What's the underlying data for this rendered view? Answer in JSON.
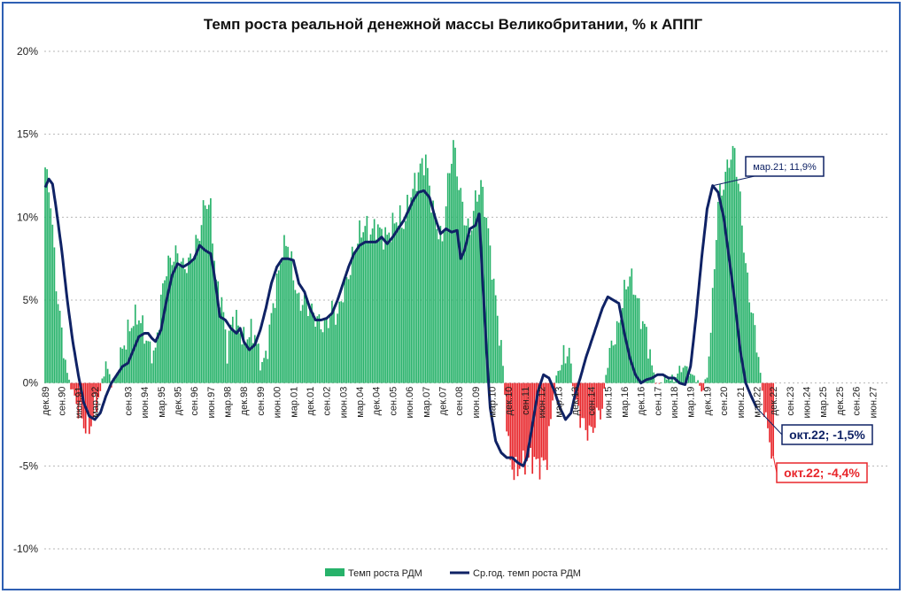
{
  "chart_data": {
    "type": "bar+line",
    "title": "Темп роста реальной денежной массы Великобритании, % к АППГ",
    "ylim": [
      -10,
      20
    ],
    "yticks": [
      {
        "value": 20,
        "label": "20%"
      },
      {
        "value": 15,
        "label": "15%"
      },
      {
        "value": 10,
        "label": "10%"
      },
      {
        "value": 5,
        "label": "5%"
      },
      {
        "value": 0,
        "label": "0%"
      },
      {
        "value": -5,
        "label": "-5%"
      },
      {
        "value": -10,
        "label": "-10%"
      }
    ],
    "x_start_month_index": 0,
    "x_total_months": 460,
    "xticks": [
      {
        "m": 0,
        "label": "дек.89"
      },
      {
        "m": 9,
        "label": "сен.90"
      },
      {
        "m": 18,
        "label": "июн.91"
      },
      {
        "m": 27,
        "label": "мар.92"
      },
      {
        "m": 45,
        "label": "сен.93"
      },
      {
        "m": 54,
        "label": "июн.94"
      },
      {
        "m": 63,
        "label": "мар.95"
      },
      {
        "m": 72,
        "label": "дек.95"
      },
      {
        "m": 81,
        "label": "сен.96"
      },
      {
        "m": 90,
        "label": "июн.97"
      },
      {
        "m": 99,
        "label": "мар.98"
      },
      {
        "m": 108,
        "label": "дек.98"
      },
      {
        "m": 117,
        "label": "сен.99"
      },
      {
        "m": 126,
        "label": "июн.00"
      },
      {
        "m": 135,
        "label": "мар.01"
      },
      {
        "m": 144,
        "label": "дек.01"
      },
      {
        "m": 153,
        "label": "сен.02"
      },
      {
        "m": 162,
        "label": "июн.03"
      },
      {
        "m": 171,
        "label": "мар.04"
      },
      {
        "m": 180,
        "label": "дек.04"
      },
      {
        "m": 189,
        "label": "сен.05"
      },
      {
        "m": 198,
        "label": "июн.06"
      },
      {
        "m": 207,
        "label": "мар.07"
      },
      {
        "m": 216,
        "label": "дек.07"
      },
      {
        "m": 225,
        "label": "сен.08"
      },
      {
        "m": 234,
        "label": "июн.09"
      },
      {
        "m": 243,
        "label": "мар.10"
      },
      {
        "m": 252,
        "label": "дек.10"
      },
      {
        "m": 261,
        "label": "сен.11"
      },
      {
        "m": 270,
        "label": "июн.12"
      },
      {
        "m": 279,
        "label": "мар.13"
      },
      {
        "m": 288,
        "label": "дек.13"
      },
      {
        "m": 297,
        "label": "сен.14"
      },
      {
        "m": 306,
        "label": "июн.15"
      },
      {
        "m": 315,
        "label": "мар.16"
      },
      {
        "m": 324,
        "label": "дек.16"
      },
      {
        "m": 333,
        "label": "сен.17"
      },
      {
        "m": 342,
        "label": "июн.18"
      },
      {
        "m": 351,
        "label": "мар.19"
      },
      {
        "m": 360,
        "label": "дек.19"
      },
      {
        "m": 369,
        "label": "сен.20"
      },
      {
        "m": 378,
        "label": "июн.21"
      },
      {
        "m": 387,
        "label": "мар.22"
      },
      {
        "m": 396,
        "label": "дек.22"
      },
      {
        "m": 405,
        "label": "сен.23"
      },
      {
        "m": 414,
        "label": "июн.24"
      },
      {
        "m": 423,
        "label": "мар.25"
      },
      {
        "m": 432,
        "label": "дек.25"
      },
      {
        "m": 441,
        "label": "сен.26"
      },
      {
        "m": 450,
        "label": "июн.27"
      }
    ],
    "bar_keypoints": [
      [
        0,
        13
      ],
      [
        3,
        11
      ],
      [
        6,
        6
      ],
      [
        9,
        3
      ],
      [
        12,
        0.5
      ],
      [
        15,
        -0.5
      ],
      [
        18,
        -1.5
      ],
      [
        21,
        -2.5
      ],
      [
        24,
        -2.8
      ],
      [
        27,
        -1.5
      ],
      [
        30,
        -0.5
      ],
      [
        33,
        1.2
      ],
      [
        36,
        0
      ],
      [
        39,
        0.5
      ],
      [
        42,
        2
      ],
      [
        45,
        3
      ],
      [
        48,
        3.8
      ],
      [
        51,
        4
      ],
      [
        54,
        3
      ],
      [
        57,
        2
      ],
      [
        60,
        1.8
      ],
      [
        63,
        5
      ],
      [
        66,
        7
      ],
      [
        69,
        7.5
      ],
      [
        72,
        7.8
      ],
      [
        75,
        7
      ],
      [
        78,
        7.2
      ],
      [
        81,
        8
      ],
      [
        84,
        9
      ],
      [
        87,
        11
      ],
      [
        90,
        10.5
      ],
      [
        93,
        6
      ],
      [
        96,
        5
      ],
      [
        99,
        2
      ],
      [
        102,
        4
      ],
      [
        105,
        3.5
      ],
      [
        108,
        2.5
      ],
      [
        111,
        3
      ],
      [
        114,
        3
      ],
      [
        117,
        1
      ],
      [
        120,
        1.5
      ],
      [
        123,
        4
      ],
      [
        126,
        6
      ],
      [
        129,
        8
      ],
      [
        132,
        8.5
      ],
      [
        135,
        6.5
      ],
      [
        138,
        4.8
      ],
      [
        141,
        5
      ],
      [
        144,
        4.5
      ],
      [
        147,
        4
      ],
      [
        150,
        3.5
      ],
      [
        153,
        3.5
      ],
      [
        156,
        4.5
      ],
      [
        159,
        4
      ],
      [
        162,
        5.5
      ],
      [
        165,
        6.5
      ],
      [
        168,
        8
      ],
      [
        171,
        9
      ],
      [
        174,
        9.5
      ],
      [
        177,
        9
      ],
      [
        180,
        9.5
      ],
      [
        183,
        9
      ],
      [
        186,
        8.8
      ],
      [
        189,
        9.5
      ],
      [
        192,
        10
      ],
      [
        195,
        9.5
      ],
      [
        198,
        11
      ],
      [
        201,
        12
      ],
      [
        204,
        13
      ],
      [
        207,
        13.5
      ],
      [
        210,
        11
      ],
      [
        213,
        9.5
      ],
      [
        216,
        8.5
      ],
      [
        219,
        12
      ],
      [
        222,
        14.5
      ],
      [
        225,
        12
      ],
      [
        228,
        10
      ],
      [
        231,
        9
      ],
      [
        234,
        11
      ],
      [
        237,
        12
      ],
      [
        240,
        10
      ],
      [
        243,
        7
      ],
      [
        246,
        4
      ],
      [
        249,
        1
      ],
      [
        252,
        -4
      ],
      [
        255,
        -5.5
      ],
      [
        258,
        -5
      ],
      [
        261,
        -4.8
      ],
      [
        264,
        -4.5
      ],
      [
        267,
        -4.8
      ],
      [
        270,
        -5
      ],
      [
        273,
        -4.5
      ],
      [
        276,
        -1
      ],
      [
        279,
        0.8
      ],
      [
        282,
        1.5
      ],
      [
        285,
        2
      ],
      [
        288,
        -1
      ],
      [
        291,
        -2
      ],
      [
        294,
        -2.8
      ],
      [
        297,
        -3
      ],
      [
        300,
        -2
      ],
      [
        303,
        -1.5
      ],
      [
        306,
        1.5
      ],
      [
        309,
        2.5
      ],
      [
        312,
        3.5
      ],
      [
        315,
        5.5
      ],
      [
        318,
        6.5
      ],
      [
        321,
        5.5
      ],
      [
        324,
        4
      ],
      [
        327,
        3
      ],
      [
        330,
        1
      ],
      [
        333,
        -0.2
      ],
      [
        336,
        0.2
      ],
      [
        339,
        0.3
      ],
      [
        342,
        0.2
      ],
      [
        345,
        0.8
      ],
      [
        348,
        1
      ],
      [
        351,
        0.5
      ],
      [
        354,
        0.3
      ],
      [
        357,
        -0.5
      ],
      [
        360,
        0.3
      ],
      [
        363,
        5
      ],
      [
        366,
        11
      ],
      [
        369,
        12
      ],
      [
        372,
        13.5
      ],
      [
        375,
        14
      ],
      [
        378,
        11
      ],
      [
        381,
        7
      ],
      [
        384,
        4.5
      ],
      [
        387,
        2.5
      ],
      [
        390,
        -0.5
      ],
      [
        393,
        -3
      ],
      [
        396,
        -4.4
      ]
    ],
    "line_keypoints": [
      [
        0,
        11.8
      ],
      [
        2,
        12.3
      ],
      [
        4,
        12
      ],
      [
        6,
        10.5
      ],
      [
        9,
        8
      ],
      [
        12,
        5
      ],
      [
        15,
        2.5
      ],
      [
        18,
        0.5
      ],
      [
        21,
        -1.2
      ],
      [
        24,
        -2
      ],
      [
        27,
        -2.2
      ],
      [
        30,
        -1.8
      ],
      [
        33,
        -0.8
      ],
      [
        36,
        0
      ],
      [
        39,
        0.5
      ],
      [
        42,
        1
      ],
      [
        45,
        1.2
      ],
      [
        48,
        2
      ],
      [
        51,
        2.8
      ],
      [
        54,
        3
      ],
      [
        56,
        3
      ],
      [
        58,
        2.7
      ],
      [
        60,
        2.5
      ],
      [
        63,
        3.2
      ],
      [
        66,
        5
      ],
      [
        69,
        6.5
      ],
      [
        72,
        7.2
      ],
      [
        75,
        7
      ],
      [
        78,
        7.2
      ],
      [
        81,
        7.5
      ],
      [
        84,
        8.3
      ],
      [
        87,
        8
      ],
      [
        90,
        7.8
      ],
      [
        92,
        6.5
      ],
      [
        95,
        4
      ],
      [
        98,
        3.8
      ],
      [
        101,
        3.3
      ],
      [
        104,
        3
      ],
      [
        106,
        3.3
      ],
      [
        108,
        2.5
      ],
      [
        111,
        2
      ],
      [
        114,
        2.3
      ],
      [
        117,
        3.2
      ],
      [
        120,
        4.5
      ],
      [
        123,
        6
      ],
      [
        126,
        7
      ],
      [
        129,
        7.5
      ],
      [
        132,
        7.5
      ],
      [
        135,
        7.4
      ],
      [
        138,
        6
      ],
      [
        141,
        5.5
      ],
      [
        144,
        4.5
      ],
      [
        147,
        3.8
      ],
      [
        150,
        3.8
      ],
      [
        153,
        3.9
      ],
      [
        156,
        4.2
      ],
      [
        159,
        5
      ],
      [
        162,
        6
      ],
      [
        165,
        7
      ],
      [
        168,
        7.8
      ],
      [
        171,
        8.3
      ],
      [
        174,
        8.5
      ],
      [
        177,
        8.5
      ],
      [
        180,
        8.5
      ],
      [
        183,
        8.8
      ],
      [
        186,
        8.4
      ],
      [
        189,
        8.8
      ],
      [
        192,
        9.3
      ],
      [
        195,
        9.8
      ],
      [
        198,
        10.5
      ],
      [
        200,
        11
      ],
      [
        203,
        11.5
      ],
      [
        206,
        11.6
      ],
      [
        209,
        11.2
      ],
      [
        212,
        10
      ],
      [
        215,
        9
      ],
      [
        218,
        9.3
      ],
      [
        221,
        9.1
      ],
      [
        224,
        9.2
      ],
      [
        226,
        7.5
      ],
      [
        228,
        8
      ],
      [
        231,
        9.3
      ],
      [
        234,
        9.5
      ],
      [
        236,
        10.2
      ],
      [
        238,
        6
      ],
      [
        240,
        2
      ],
      [
        242,
        -1.5
      ],
      [
        245,
        -3.5
      ],
      [
        248,
        -4.2
      ],
      [
        251,
        -4.5
      ],
      [
        254,
        -4.5
      ],
      [
        257,
        -4.8
      ],
      [
        260,
        -5
      ],
      [
        262,
        -4.5
      ],
      [
        265,
        -2.5
      ],
      [
        268,
        -0.5
      ],
      [
        271,
        0.5
      ],
      [
        274,
        0.3
      ],
      [
        277,
        -0.5
      ],
      [
        280,
        -1.5
      ],
      [
        283,
        -2.2
      ],
      [
        286,
        -1.8
      ],
      [
        288,
        -0.8
      ],
      [
        291,
        0.3
      ],
      [
        294,
        1.5
      ],
      [
        297,
        2.5
      ],
      [
        300,
        3.5
      ],
      [
        303,
        4.5
      ],
      [
        306,
        5.2
      ],
      [
        309,
        5
      ],
      [
        312,
        4.8
      ],
      [
        315,
        3
      ],
      [
        318,
        1.5
      ],
      [
        321,
        0.5
      ],
      [
        324,
        0
      ],
      [
        327,
        0.2
      ],
      [
        330,
        0.3
      ],
      [
        333,
        0.5
      ],
      [
        336,
        0.5
      ],
      [
        339,
        0.3
      ],
      [
        342,
        0.3
      ],
      [
        345,
        0
      ],
      [
        348,
        -0.1
      ],
      [
        351,
        1
      ],
      [
        354,
        4
      ],
      [
        357,
        7.5
      ],
      [
        360,
        10.5
      ],
      [
        363,
        11.9
      ],
      [
        366,
        11.5
      ],
      [
        369,
        10
      ],
      [
        372,
        7.5
      ],
      [
        375,
        5
      ],
      [
        378,
        2
      ],
      [
        381,
        0
      ],
      [
        384,
        -0.8
      ],
      [
        387,
        -1.5
      ]
    ],
    "series": [
      {
        "name": "Темп роста РДМ",
        "type": "bar",
        "color_pos": "#27b26a",
        "color_neg": "#e8262b"
      },
      {
        "name": "Ср.год. темп роста РДМ",
        "type": "line",
        "color": "#0f2265"
      }
    ],
    "annotations": [
      {
        "text": "мар.21; 11,9%",
        "m": 363,
        "value": 11.9,
        "style": "navy-small"
      },
      {
        "text": "окт.22; -1,5%",
        "m": 387,
        "value": -1.5,
        "style": "navy"
      },
      {
        "text": "окт.22; -4,4%",
        "m": 396,
        "value": -4.4,
        "style": "red"
      }
    ]
  },
  "legend": {
    "bar_label": "Темп роста РДМ",
    "line_label": "Ср.год. темп роста РДМ"
  }
}
